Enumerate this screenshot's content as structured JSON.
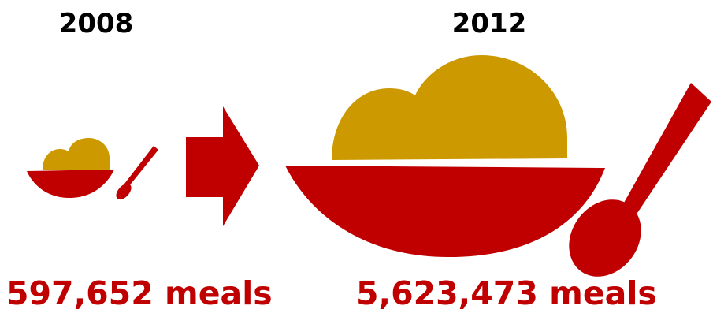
{
  "left": {
    "year": "2008",
    "meals": "597,652 meals"
  },
  "right": {
    "year": "2012",
    "meals": "5,623,473 meals"
  },
  "icons": [
    "bowl-icon",
    "spoon-icon",
    "arrow-right-icon"
  ],
  "colors": {
    "accent": "#c00000",
    "food": "#cc9900",
    "text": "#000000"
  }
}
